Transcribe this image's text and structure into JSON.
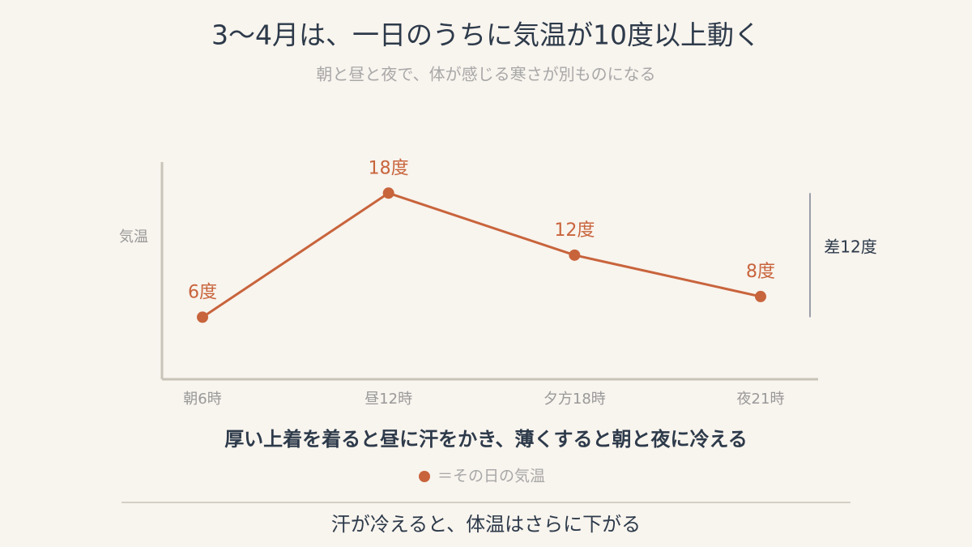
{
  "chart_data": {
    "type": "line",
    "title": "3〜4月は、一日のうちに気温が10度以上動く",
    "subtitle": "朝と昼と夜で、体が感じる寒さが別ものになる",
    "y_label": "気温",
    "annotation": "差12度",
    "caption": "厚い上着を着ると昼に汗をかき、薄くすると朝と夜に冷える",
    "footer": "汗が冷えると、体温はさらに下がる",
    "categories": [
      "朝6時",
      "昼12時",
      "夕方18時",
      "夜21時"
    ],
    "series": [
      {
        "name": "＝その日の気温",
        "color": "#c8643c",
        "values": [
          6,
          18,
          12,
          8
        ],
        "value_labels": [
          "6度",
          "18度",
          "12度",
          "8度"
        ]
      }
    ],
    "ylim": [
      0,
      21
    ],
    "grid": false
  }
}
